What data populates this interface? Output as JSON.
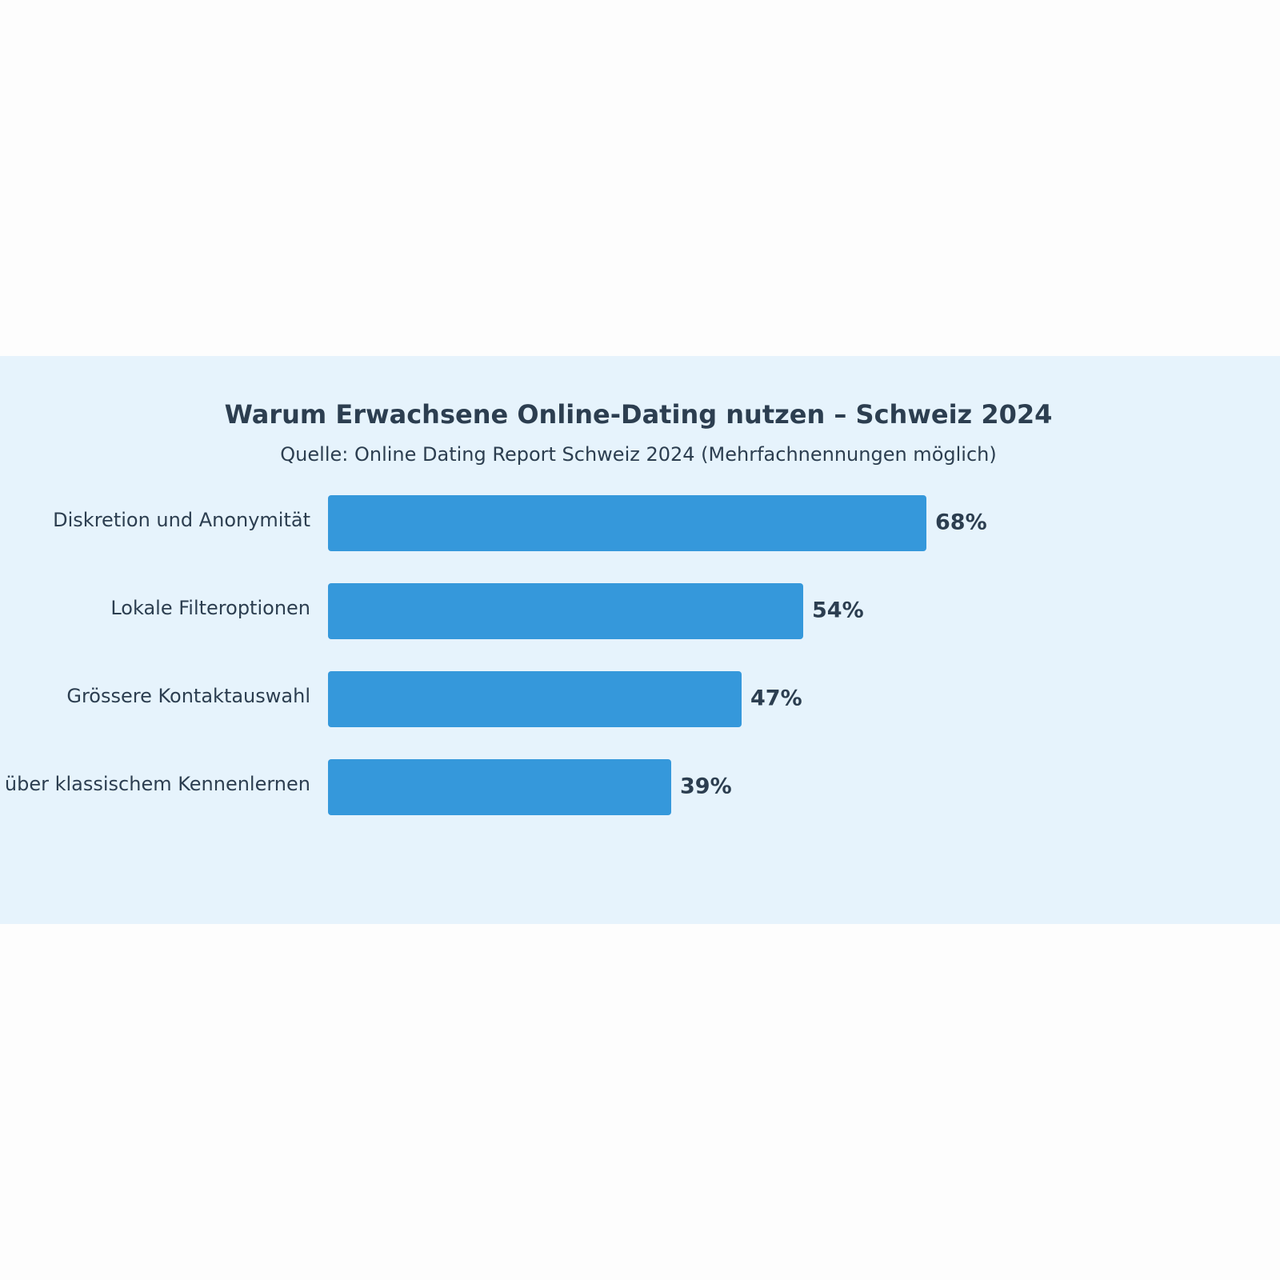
{
  "chart_data": {
    "type": "bar",
    "orientation": "horizontal",
    "title": "Warum Erwachsene Online-Dating nutzen – Schweiz 2024",
    "subtitle": "Quelle: Online Dating Report Schweiz 2024 (Mehrfachnennungen möglich)",
    "categories": [
      "Diskretion und Anonymität",
      "Lokale Filteroptionen",
      "Grössere Kontaktauswahl",
      "über klassischem Kennenlernen"
    ],
    "values": [
      68,
      54,
      47,
      39
    ],
    "value_labels": [
      "68%",
      "54%",
      "47%",
      "39%"
    ],
    "xlim": [
      0,
      100
    ],
    "grid": false,
    "bar_color": "#3598db"
  }
}
